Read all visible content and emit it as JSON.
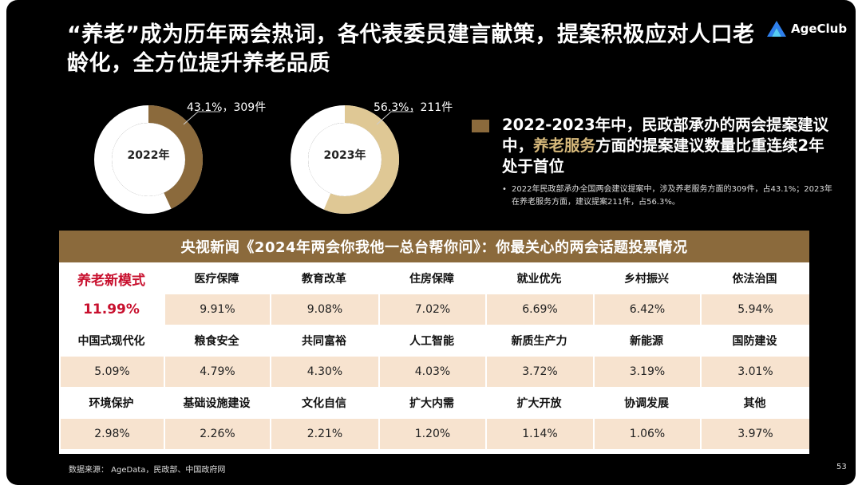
{
  "title": "“养老”成为历年两会热词，各代表委员建言献策，提案积极应对人口老龄化，全方位提升养老品质",
  "logo": {
    "text": "AgeClub"
  },
  "donuts": [
    {
      "year": "2022年",
      "label": "43.1%，309件",
      "fraction": 0.431,
      "color": "#8b6a3c"
    },
    {
      "year": "2023年",
      "label": "56.3%，211件",
      "fraction": 0.563,
      "color": "#dfc895"
    }
  ],
  "summary": {
    "part1": "2022-2023年中，民政部承办的两会提案建议中，",
    "highlight": "养老服务",
    "part2": "方面的提案建议数量比重连续2年处于首位",
    "note": "2022年民政部承办全国两会建议提案中，涉及养老服务方面的309件，占43.1%；2023年在养老服务方面，建议提案211件，占56.3%。"
  },
  "table": {
    "header": "央视新闻《2024年两会你我他一总台帮你问》：你最关心的两会话题投票情况",
    "rows": [
      {
        "names": [
          "养老新模式",
          "医疗保障",
          "教育改革",
          "住房保障",
          "就业优先",
          "乡村振兴",
          "依法治国"
        ],
        "values": [
          "11.99%",
          "9.91%",
          "9.08%",
          "7.02%",
          "6.69%",
          "6.42%",
          "5.94%"
        ]
      },
      {
        "names": [
          "中国式现代化",
          "粮食安全",
          "共同富裕",
          "人工智能",
          "新质生产力",
          "新能源",
          "国防建设"
        ],
        "values": [
          "5.09%",
          "4.79%",
          "4.30%",
          "4.03%",
          "3.72%",
          "3.19%",
          "3.01%"
        ]
      },
      {
        "names": [
          "环境保护",
          "基础设施建设",
          "文化自信",
          "扩大内需",
          "扩大开放",
          "协调发展",
          "其他"
        ],
        "values": [
          "2.98%",
          "2.26%",
          "2.21%",
          "1.20%",
          "1.14%",
          "1.06%",
          "3.97%"
        ]
      }
    ]
  },
  "footer": {
    "source": "数据来源： AgeData，民政部、中国政府网",
    "page": "53"
  }
}
